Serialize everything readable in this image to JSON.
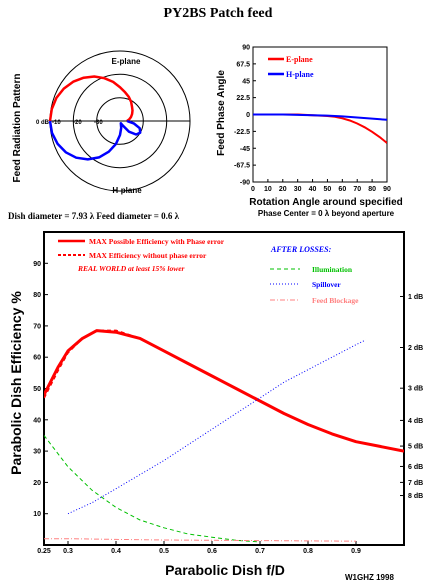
{
  "title": "PY2BS Patch feed",
  "caption": "Dish diameter = 7.93 λ Feed diameter = 0.6 λ",
  "credit": "W1GHZ 1998",
  "colors": {
    "red": "#ff0000",
    "blue": "#0000ff",
    "green": "#00c000",
    "pink": "#ff8080",
    "black": "#000000"
  },
  "chart_data": [
    {
      "type": "polar",
      "name": "radiation-pattern",
      "ylabel": "Feed Radiation Pattern",
      "top_label": "E-plane",
      "bottom_label": "H-plane",
      "ring_labels": [
        "0 dB",
        "-10",
        "-20",
        "-30"
      ],
      "series": [
        {
          "label": "E-plane",
          "color": "#ff0000",
          "angles_deg": [
            0,
            10,
            20,
            30,
            40,
            50,
            60,
            70,
            80,
            90,
            100,
            110,
            120,
            130,
            140,
            150,
            160,
            170,
            180
          ],
          "gain_db": [
            0,
            -0.3,
            -1,
            -2.2,
            -3.8,
            -5.8,
            -8,
            -10.5,
            -13,
            -15.5,
            -17.5,
            -19,
            -20.5,
            -22,
            -23,
            -24,
            -25,
            -26,
            -27
          ]
        },
        {
          "label": "H-plane",
          "color": "#0000ff",
          "angles_deg": [
            0,
            10,
            20,
            30,
            40,
            50,
            60,
            70,
            80,
            90,
            100,
            110,
            120,
            130,
            140,
            150,
            160,
            170,
            180
          ],
          "gain_db": [
            0,
            -0.4,
            -1.5,
            -3.2,
            -5.5,
            -8.5,
            -12,
            -16,
            -20,
            -24,
            -27,
            -29,
            -28,
            -24,
            -21,
            -20,
            -21,
            -24,
            -27
          ]
        }
      ]
    },
    {
      "type": "line",
      "name": "phase",
      "ylabel": "Feed Phase Angle",
      "xlabel": "Rotation Angle around specified",
      "subtitle": "Phase Center = 0 λ beyond aperture",
      "xlim": [
        0,
        90
      ],
      "ylim": [
        -90,
        90
      ],
      "x_ticks": [
        0,
        10,
        20,
        30,
        40,
        50,
        60,
        70,
        80,
        90
      ],
      "x_tick_labels": [
        "0",
        "10",
        "20",
        "30",
        "40",
        "50",
        "60",
        "70",
        "80",
        "90"
      ],
      "y_ticks": [
        90,
        67.5,
        45,
        22.5,
        0,
        -22.5,
        -45,
        -67.5,
        -90
      ],
      "y_tick_labels": [
        "90",
        "67.5",
        "45",
        "22.5",
        "0",
        "-22.5",
        "-45",
        "-67.5",
        "-90"
      ],
      "legend": [
        "E-plane",
        "H-plane"
      ],
      "series": [
        {
          "name": "E-plane",
          "color": "#ff0000",
          "x": [
            0,
            10,
            20,
            30,
            40,
            50,
            55,
            60,
            65,
            70,
            75,
            80,
            85,
            90
          ],
          "y": [
            0,
            0,
            0,
            0,
            -1,
            -2,
            -3,
            -5,
            -8,
            -12,
            -17,
            -23,
            -30,
            -38
          ]
        },
        {
          "name": "H-plane",
          "color": "#0000ff",
          "x": [
            0,
            10,
            20,
            30,
            40,
            50,
            60,
            70,
            80,
            90
          ],
          "y": [
            0,
            0,
            0,
            -0.5,
            -1,
            -1.5,
            -2.5,
            -4,
            -5.5,
            -7
          ]
        }
      ]
    },
    {
      "type": "line",
      "name": "efficiency",
      "ylabel": "Parabolic Dish Efficiency %",
      "xlabel": "Parabolic Dish f/D",
      "xlim": [
        0.25,
        1.0
      ],
      "ylim": [
        0,
        100
      ],
      "x_ticks": [
        0.25,
        0.3,
        0.4,
        0.5,
        0.6,
        0.7,
        0.8,
        0.9
      ],
      "x_tick_labels": [
        "0.25",
        "0.3",
        "0.4",
        "0.5",
        "0.6",
        "0.7",
        "0.8",
        "0.9"
      ],
      "y_ticks": [
        10,
        20,
        30,
        40,
        50,
        60,
        70,
        80,
        90
      ],
      "y_tick_labels": [
        "10",
        "20",
        "30",
        "40",
        "50",
        "60",
        "70",
        "80",
        "90"
      ],
      "right_ticks": [
        {
          "label": "1 dB",
          "value": 79.4
        },
        {
          "label": "2 dB",
          "value": 63.1
        },
        {
          "label": "3 dB",
          "value": 50.1
        },
        {
          "label": "4 dB",
          "value": 39.8
        },
        {
          "label": "5 dB",
          "value": 31.6
        },
        {
          "label": "6 dB",
          "value": 25.1
        },
        {
          "label": "7 dB",
          "value": 20.0
        },
        {
          "label": "8 dB",
          "value": 15.8
        }
      ],
      "legend_title": "AFTER LOSSES:",
      "note": "REAL WORLD at least 15% lower",
      "series": [
        {
          "name": "MAX Possible Efficiency with Phase error",
          "color": "#ff0000",
          "style": "solid",
          "x": [
            0.25,
            0.28,
            0.3,
            0.33,
            0.36,
            0.4,
            0.45,
            0.5,
            0.55,
            0.6,
            0.65,
            0.7,
            0.75,
            0.8,
            0.85,
            0.9,
            0.95,
            1.0
          ],
          "y": [
            48,
            57,
            62,
            66,
            68.5,
            68,
            66,
            62,
            58,
            54,
            50,
            46,
            42,
            38.5,
            35.5,
            33,
            31.5,
            30
          ]
        },
        {
          "name": "MAX Efficiency without phase error",
          "color": "#ff0000",
          "style": "dashed",
          "x": [
            0.25,
            0.28,
            0.3,
            0.33,
            0.36,
            0.4,
            0.45,
            0.5,
            0.55,
            0.6,
            0.65,
            0.7,
            0.75,
            0.8,
            0.85,
            0.9,
            0.95,
            1.0
          ],
          "y": [
            47,
            56,
            61.5,
            66,
            68.5,
            68.5,
            66,
            62,
            58,
            54,
            50,
            46,
            42,
            38.5,
            35.5,
            33,
            31.5,
            30
          ]
        },
        {
          "name": "Illumination",
          "color": "#00c000",
          "style": "dashed",
          "x": [
            0.25,
            0.3,
            0.35,
            0.4,
            0.45,
            0.5,
            0.55,
            0.6,
            0.65,
            0.7
          ],
          "y": [
            35,
            25,
            17.5,
            12,
            8,
            5.5,
            3.5,
            2.5,
            1.5,
            1
          ]
        },
        {
          "name": "Spillover",
          "color": "#0000ff",
          "style": "dotted",
          "x": [
            0.3,
            0.35,
            0.4,
            0.45,
            0.5,
            0.55,
            0.6,
            0.65,
            0.7,
            0.75,
            0.8,
            0.85,
            0.9,
            0.92
          ],
          "y": [
            10,
            13.5,
            18,
            22.5,
            27,
            32,
            37,
            42,
            47,
            52,
            56,
            60,
            64,
            65.5
          ]
        },
        {
          "name": "Feed Blockage",
          "color": "#ff8080",
          "style": "dashdot",
          "x": [
            0.25,
            0.3,
            0.4,
            0.5,
            0.6,
            0.7,
            0.8,
            0.9
          ],
          "y": [
            2,
            2,
            1.8,
            1.6,
            1.5,
            1.4,
            1.3,
            1.2
          ]
        }
      ]
    }
  ]
}
